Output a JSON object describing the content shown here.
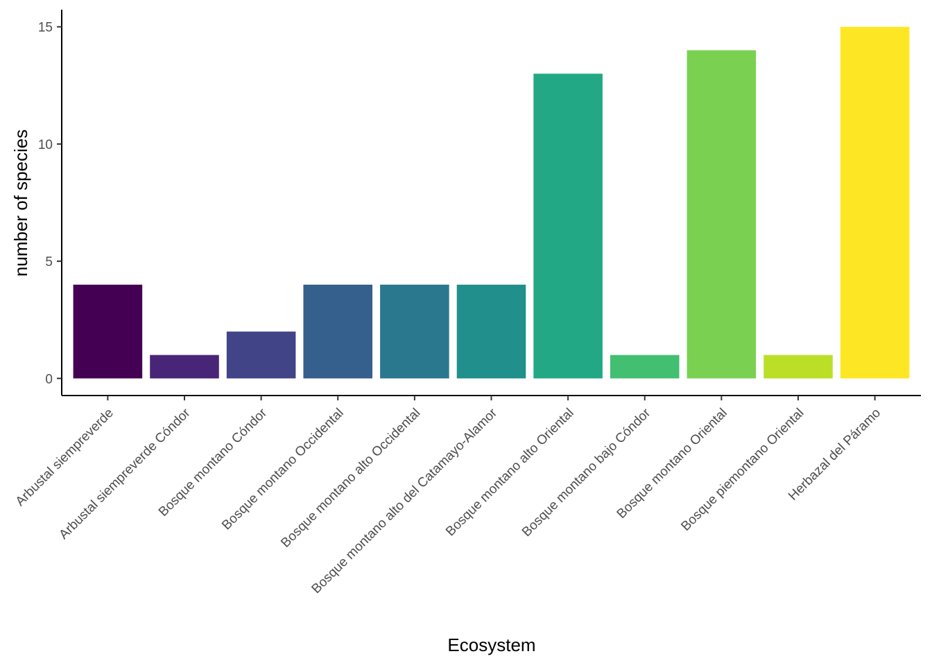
{
  "chart_data": {
    "type": "bar",
    "categories": [
      "Arbustal siempreverde",
      "Arbustal siempreverde Cóndor",
      "Bosque  montano Cóndor",
      "Bosque  montano Occidental",
      "Bosque montano alto  Occidental",
      "Bosque montano alto del Catamayo-Alamor",
      "Bosque montano alto Oriental",
      "Bosque montano bajo  Cóndor",
      "Bosque montano Oriental",
      "Bosque piemontano Oriental",
      "Herbazal del Páramo"
    ],
    "values": [
      4,
      1,
      2,
      4,
      4,
      4,
      13,
      1,
      14,
      1,
      15
    ],
    "colors": [
      "#440154",
      "#482576",
      "#414487",
      "#35608D",
      "#2A788E",
      "#21908C",
      "#22A884",
      "#43BF71",
      "#7AD151",
      "#BBDF27",
      "#FDE725"
    ],
    "xlabel": "Ecosystem",
    "ylabel": "number of species",
    "yticks": [
      0,
      5,
      10,
      15
    ],
    "ylim": [
      -0.73,
      15.73
    ],
    "grid": false,
    "legend": "none"
  }
}
